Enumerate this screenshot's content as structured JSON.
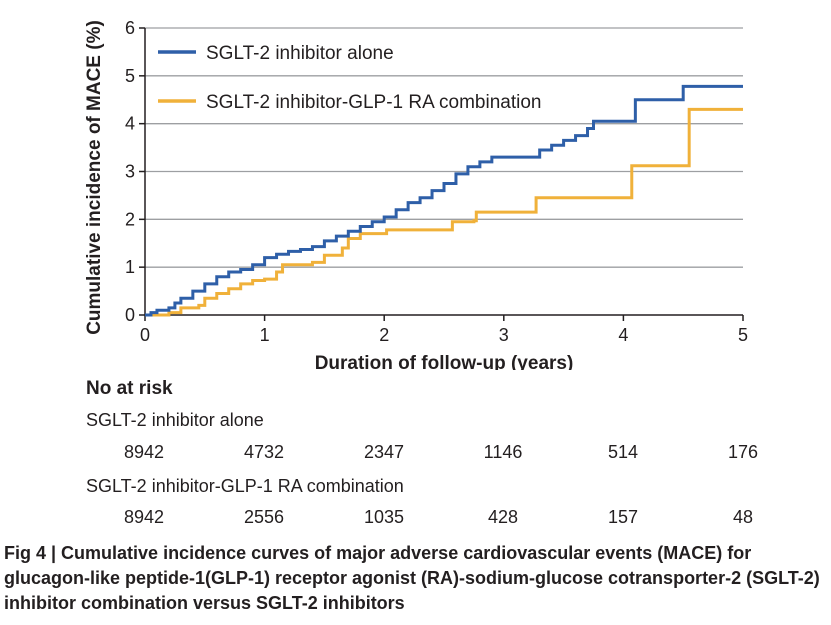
{
  "chart_data": {
    "type": "line",
    "subtype": "step",
    "ylabel": "Cumulative incidence of MACE (%)",
    "xlabel": "Duration of follow-up (years)",
    "xlim": [
      0,
      5
    ],
    "ylim": [
      0,
      6
    ],
    "x_ticks": [
      0,
      1,
      2,
      3,
      4,
      5
    ],
    "y_ticks": [
      0,
      1,
      2,
      3,
      4,
      5,
      6
    ],
    "grid": "horizontal",
    "legend_position": "top-left",
    "series": [
      {
        "name": "SGLT-2 inhibitor alone",
        "color": "#2e5fa8",
        "points": [
          [
            0,
            0
          ],
          [
            0.05,
            0.05
          ],
          [
            0.1,
            0.1
          ],
          [
            0.2,
            0.15
          ],
          [
            0.25,
            0.25
          ],
          [
            0.3,
            0.35
          ],
          [
            0.4,
            0.5
          ],
          [
            0.5,
            0.65
          ],
          [
            0.6,
            0.8
          ],
          [
            0.7,
            0.9
          ],
          [
            0.8,
            0.95
          ],
          [
            0.9,
            1.05
          ],
          [
            1.0,
            1.2
          ],
          [
            1.1,
            1.27
          ],
          [
            1.2,
            1.33
          ],
          [
            1.3,
            1.37
          ],
          [
            1.4,
            1.43
          ],
          [
            1.5,
            1.55
          ],
          [
            1.6,
            1.65
          ],
          [
            1.7,
            1.75
          ],
          [
            1.8,
            1.85
          ],
          [
            1.9,
            1.95
          ],
          [
            2.0,
            2.05
          ],
          [
            2.1,
            2.2
          ],
          [
            2.2,
            2.35
          ],
          [
            2.3,
            2.45
          ],
          [
            2.4,
            2.6
          ],
          [
            2.5,
            2.75
          ],
          [
            2.6,
            2.95
          ],
          [
            2.7,
            3.1
          ],
          [
            2.8,
            3.2
          ],
          [
            2.9,
            3.3
          ],
          [
            3.2,
            3.3
          ],
          [
            3.3,
            3.45
          ],
          [
            3.4,
            3.55
          ],
          [
            3.5,
            3.65
          ],
          [
            3.6,
            3.75
          ],
          [
            3.7,
            3.9
          ],
          [
            3.75,
            4.05
          ],
          [
            4.05,
            4.05
          ],
          [
            4.1,
            4.5
          ],
          [
            4.45,
            4.5
          ],
          [
            4.5,
            4.78
          ],
          [
            5.0,
            4.78
          ]
        ]
      },
      {
        "name": "SGLT-2 inhibitor-GLP-1 RA combination",
        "color": "#f0b13a",
        "points": [
          [
            0,
            0
          ],
          [
            0.2,
            0.05
          ],
          [
            0.3,
            0.15
          ],
          [
            0.45,
            0.2
          ],
          [
            0.5,
            0.35
          ],
          [
            0.6,
            0.45
          ],
          [
            0.7,
            0.55
          ],
          [
            0.8,
            0.65
          ],
          [
            0.9,
            0.72
          ],
          [
            1.0,
            0.75
          ],
          [
            1.1,
            0.9
          ],
          [
            1.15,
            1.05
          ],
          [
            1.4,
            1.1
          ],
          [
            1.5,
            1.25
          ],
          [
            1.65,
            1.4
          ],
          [
            1.7,
            1.6
          ],
          [
            1.8,
            1.7
          ],
          [
            2.0,
            1.7
          ],
          [
            2.02,
            1.78
          ],
          [
            2.55,
            1.78
          ],
          [
            2.57,
            1.95
          ],
          [
            2.75,
            1.97
          ],
          [
            2.77,
            2.15
          ],
          [
            3.25,
            2.15
          ],
          [
            3.27,
            2.45
          ],
          [
            4.05,
            2.45
          ],
          [
            4.07,
            3.12
          ],
          [
            4.53,
            3.12
          ],
          [
            4.55,
            4.3
          ],
          [
            5.0,
            4.3
          ]
        ]
      }
    ]
  },
  "at_risk": {
    "title": "No at risk",
    "rows": [
      {
        "label": "SGLT-2 inhibitor alone",
        "values": [
          "8942",
          "4732",
          "2347",
          "1146",
          "514",
          "176"
        ]
      },
      {
        "label": "SGLT-2 inhibitor-GLP-1 RA combination",
        "values": [
          "8942",
          "2556",
          "1035",
          "428",
          "157",
          "48"
        ]
      }
    ]
  },
  "caption": "Fig 4 | Cumulative incidence curves of major adverse cardiovascular events (MACE) for glucagon-like peptide-1(GLP-1) receptor agonist (RA)-sodium-glucose cotransporter-2 (SGLT-2) inhibitor combination versus SGLT-2 inhibitors"
}
